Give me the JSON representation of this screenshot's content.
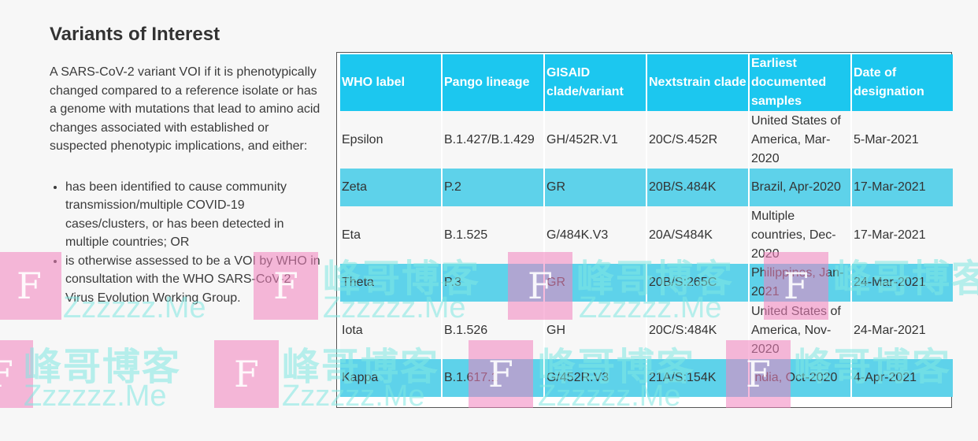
{
  "heading": "Variants of Interest",
  "intro": "A SARS-CoV-2 variant VOI if it is phenotypically changed compared to a reference isolate or has a genome with mutations that lead to amino acid changes associated with established or suspected phenotypic implications, and either:",
  "criteria": [
    "has been identified to cause community transmission/multiple COVID-19 cases/clusters, or has been detected in multiple countries; OR",
    "is otherwise assessed to be a VOI by WHO in consultation with the WHO SARS-CoV-2 Virus Evolution Working Group."
  ],
  "table": {
    "headers": [
      "WHO label",
      "Pango lineage",
      "GISAID clade/variant",
      "Nextstrain clade",
      "Earliest documented samples",
      "Date of designation"
    ],
    "rows": [
      [
        "Epsilon",
        "B.1.427/B.1.429",
        "GH/452R.V1",
        "20C/S.452R",
        "United States of America, Mar-2020",
        "5-Mar-2021"
      ],
      [
        "Zeta",
        "P.2",
        "GR",
        "20B/S.484K",
        "Brazil, Apr-2020",
        "17-Mar-2021"
      ],
      [
        "Eta",
        "B.1.525",
        "G/484K.V3",
        "20A/S484K",
        "Multiple countries, Dec-2020",
        "17-Mar-2021"
      ],
      [
        "Theta",
        "P.3",
        "GR",
        "20B/S:265C",
        "Philippines, Jan-2021",
        "24-Mar-2021"
      ],
      [
        "Iota",
        "B.1.526",
        "GH",
        "20C/S:484K",
        "United States of America, Nov-2020",
        "24-Mar-2021"
      ],
      [
        "Kappa",
        "B.1.617.1",
        "G/452R.V3",
        "21A/S:154K",
        "India, Oct-2020",
        "4-Apr-2021"
      ]
    ]
  },
  "watermark": {
    "letter": "F",
    "text_cn": "峰哥博客",
    "text_en": "Zzzzzz.Me"
  }
}
